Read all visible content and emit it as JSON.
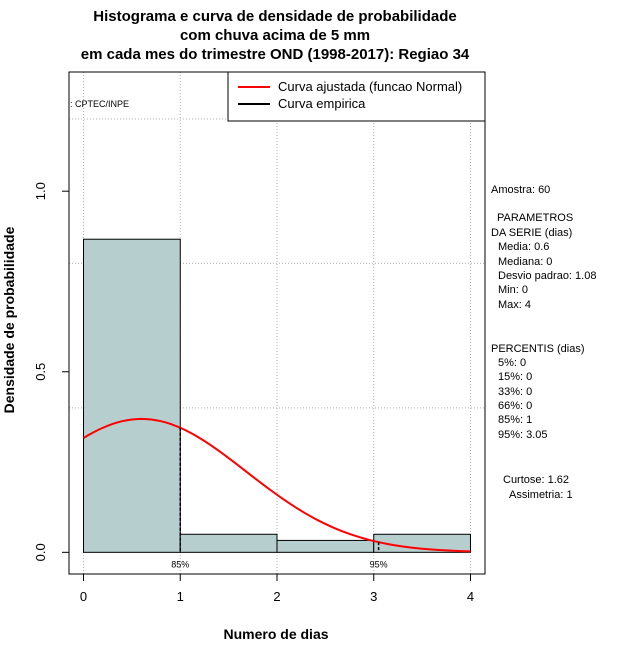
{
  "chart_data": {
    "type": "bar",
    "title_lines": [
      "Histograma e curva de densidade de probabilidade",
      "com chuva acima de 5 mm",
      "em cada mes do trimestre OND (1998-2017): Regiao 34"
    ],
    "xlabel": "Numero de dias",
    "ylabel": "Densidade de probabilidade",
    "xlim": [
      -0.15,
      4.15
    ],
    "ylim": [
      -0.06,
      1.33
    ],
    "x_ticks": [
      0,
      1,
      2,
      3,
      4
    ],
    "y_ticks": [
      0.0,
      0.5,
      1.0
    ],
    "x_tick_labels": [
      "0",
      "1",
      "2",
      "3",
      "4"
    ],
    "y_tick_labels": [
      "0.0",
      "0.5",
      "1.0"
    ],
    "grid_x": [
      0,
      1,
      2,
      3,
      4
    ],
    "grid_y": [
      0.4,
      0.8,
      1.2
    ],
    "bins": [
      {
        "x0": 0,
        "x1": 1,
        "density": 0.867
      },
      {
        "x0": 1,
        "x1": 2,
        "density": 0.05
      },
      {
        "x0": 2,
        "x1": 3,
        "density": 0.033
      },
      {
        "x0": 3,
        "x1": 4,
        "density": 0.05
      }
    ],
    "fitted_curve": {
      "type": "normal",
      "mean": 0.6,
      "sd": 1.08,
      "x_range": [
        0,
        4
      ],
      "color": "#ff0000"
    },
    "empirical_curve_color": "#000000",
    "bar_fill": "#b6cece",
    "percentile_markers": [
      {
        "x": 1.0,
        "label": "85%"
      },
      {
        "x": 3.05,
        "label": "95%"
      }
    ],
    "legend": {
      "position": "top-right",
      "entries": [
        {
          "label": "Curva ajustada (funcao Normal)",
          "color": "#ff0000"
        },
        {
          "label": "Curva empirica",
          "color": "#000000"
        }
      ]
    },
    "credit": ": CPTEC/INPE"
  },
  "stats": {
    "amostra": "Amostra: 60",
    "parametros_title_1": "PARAMETROS",
    "parametros_title_2": "DA SERIE (dias)",
    "media": "Media: 0.6",
    "mediana": "Mediana: 0",
    "desvio": "Desvio padrao: 1.08",
    "min": "Min: 0",
    "max": "Max: 4",
    "percentis_title": "PERCENTIS (dias)",
    "p5": "5%: 0",
    "p15": "15%: 0",
    "p33": "33%: 0",
    "p66": "66%: 0",
    "p85": "85%: 1",
    "p95": "95%: 3.05",
    "curtose": "Curtose: 1.62",
    "assimetria": "Assimetria: 1"
  }
}
